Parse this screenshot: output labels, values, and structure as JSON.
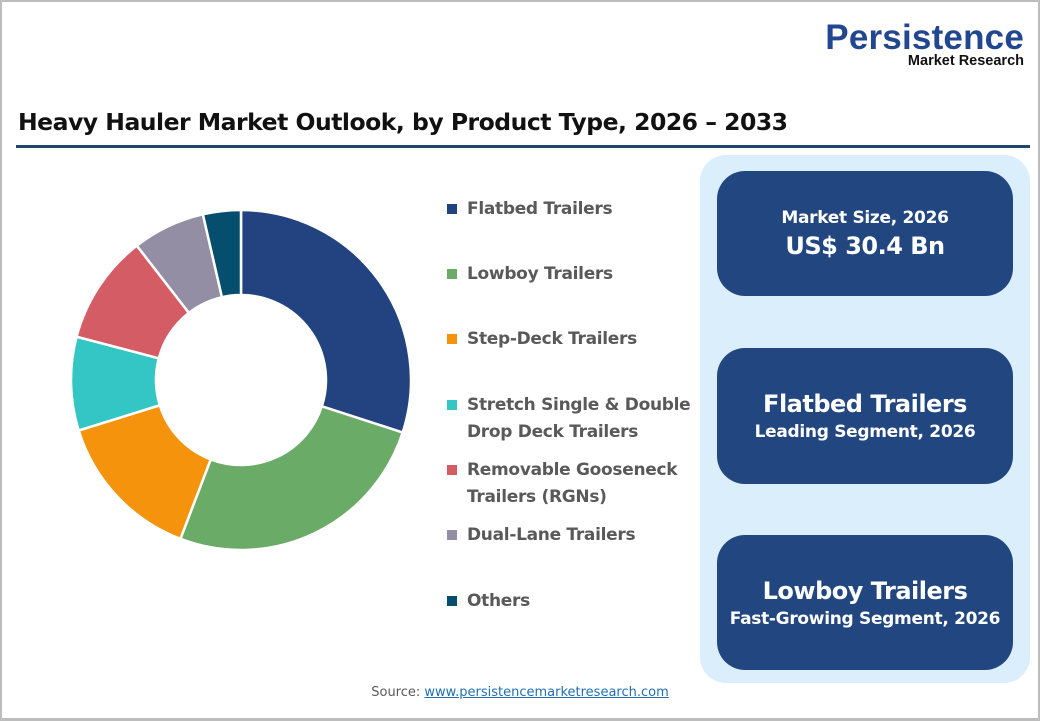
{
  "logo": {
    "name": "Persistence",
    "subtitle": "Market Research"
  },
  "title": "Heavy Hauler Market Outlook, by Product Type, 2026 – 2033",
  "legend": [
    {
      "label": "Flatbed Trailers",
      "color": "#22437f"
    },
    {
      "label": "Lowboy Trailers",
      "color": "#6aab67"
    },
    {
      "label": "Step-Deck Trailers",
      "color": "#f5930c"
    },
    {
      "label": "Stretch Single & Double\nDrop Deck Trailers",
      "color": "#33c6c4"
    },
    {
      "label": "Removable Gooseneck\nTrailers (RGNs)",
      "color": "#d35c65"
    },
    {
      "label": "Dual-Lane Trailers",
      "color": "#938ea4"
    },
    {
      "label": "Others",
      "color": "#064e6e"
    }
  ],
  "cards": [
    {
      "top": "Market Size, 2026",
      "bottom": "US$ 30.4 Bn"
    },
    {
      "top": "Flatbed Trailers",
      "bottom": "Leading Segment, 2026"
    },
    {
      "top": "Lowboy Trailers",
      "bottom": "Fast-Growing Segment, 2026"
    }
  ],
  "source": {
    "label": "Source:",
    "link": "www.persistencemarketresearch.com"
  },
  "chart_data": {
    "type": "pie",
    "subtype": "donut",
    "title": "Heavy Hauler Market Outlook, by Product Type, 2026 – 2033",
    "categories": [
      "Flatbed Trailers",
      "Lowboy Trailers",
      "Step-Deck Trailers",
      "Stretch Single & Double Drop Deck Trailers",
      "Removable Gooseneck Trailers (RGNs)",
      "Dual-Lane Trailers",
      "Others"
    ],
    "values": [
      30.0,
      25.8,
      14.4,
      8.9,
      10.4,
      6.9,
      3.6
    ],
    "unit": "% share (estimated from slice angles)",
    "colors": [
      "#22437f",
      "#6aab67",
      "#f5930c",
      "#33c6c4",
      "#d35c65",
      "#938ea4",
      "#064e6e"
    ],
    "start_angle_deg": 0,
    "direction": "clockwise",
    "legend_position": "right",
    "data_labels": false
  }
}
